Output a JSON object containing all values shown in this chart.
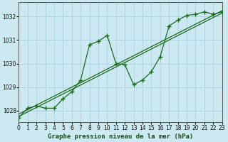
{
  "title": "Graphe pression niveau de la mer (hPa)",
  "background_color": "#cce8f0",
  "grid_color": "#aacfdf",
  "line_color": "#1a6b1a",
  "x_min": 0,
  "x_max": 23,
  "y_min": 1027.5,
  "y_max": 1032.6,
  "yticks": [
    1028,
    1029,
    1030,
    1031,
    1032
  ],
  "xticks": [
    0,
    1,
    2,
    3,
    4,
    5,
    6,
    7,
    8,
    9,
    10,
    11,
    12,
    13,
    14,
    15,
    16,
    17,
    18,
    19,
    20,
    21,
    22,
    23
  ],
  "wavy": {
    "x": [
      0,
      1,
      2,
      3,
      4,
      5,
      6,
      7,
      8,
      9,
      10,
      11,
      12,
      13,
      14,
      15,
      16,
      17,
      18,
      19,
      20,
      21,
      22,
      23
    ],
    "y": [
      1027.7,
      1028.1,
      1028.2,
      1028.1,
      1028.1,
      1028.5,
      1028.8,
      1029.3,
      1030.8,
      1030.95,
      1031.2,
      1030.0,
      1029.95,
      1029.1,
      1029.3,
      1029.65,
      1030.3,
      1031.6,
      1031.85,
      1032.05,
      1032.1,
      1032.2,
      1032.1,
      1032.2
    ]
  },
  "trend1": {
    "x": [
      0,
      23
    ],
    "y": [
      1027.75,
      1032.15
    ]
  },
  "trend2": {
    "x": [
      0,
      23
    ],
    "y": [
      1027.85,
      1032.25
    ]
  }
}
